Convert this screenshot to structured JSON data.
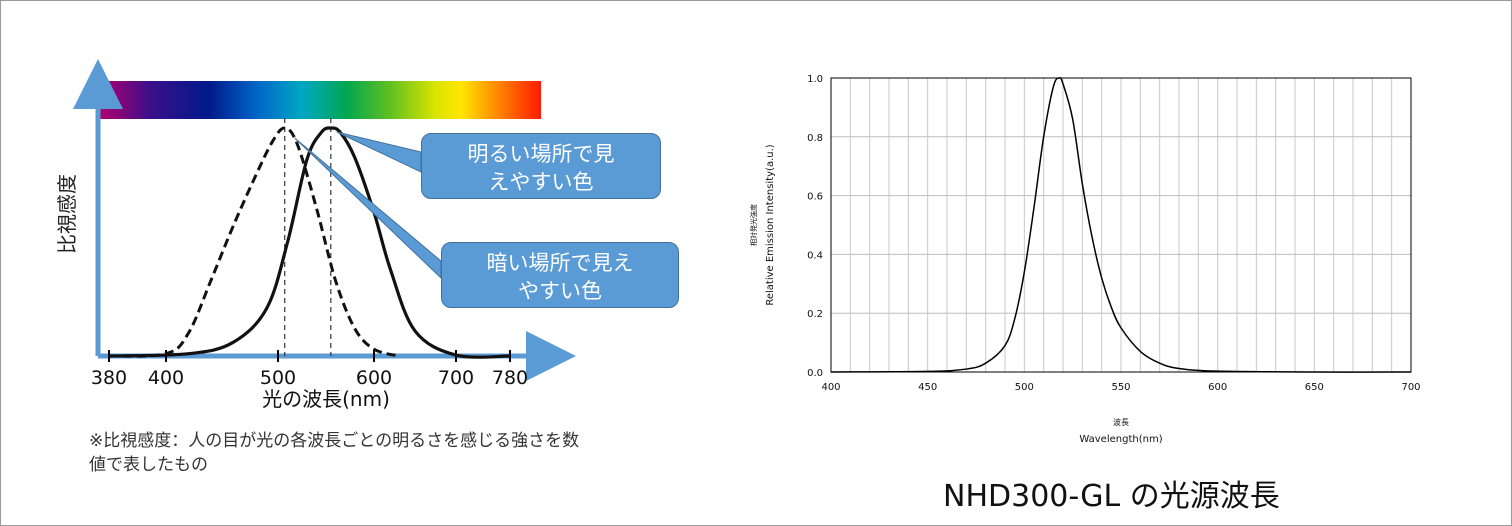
{
  "left_chart": {
    "ylabel": "比視感度",
    "xlabel": "光の波長(nm)",
    "tick_labels": [
      "380",
      "400",
      "500",
      "600",
      "700",
      "780"
    ],
    "callout_photopic": "明るい場所で見えやすい色",
    "callout_photopic_lines": [
      "明るい場所で見",
      "えやすい色"
    ],
    "callout_scotopic": "暗い場所で見えやすい色",
    "callout_scotopic_lines": [
      "暗い場所で見え",
      "やすい色"
    ],
    "note": "※比視感度：人の目が光の各波長ごとの明るさを感じる強さを数値で表したもの",
    "note_lines": [
      "※比視感度：人の目が光の各波長ごとの明るさを感じる強さを数",
      "値で表したもの"
    ],
    "axis_color": "#5b9bd5",
    "callout_color": "#5b9bd5"
  },
  "right_chart": {
    "ylabel_jp": "相対発光強度",
    "ylabel_en": "Relative Emission Intensity(a.u.)",
    "xlabel_jp": "波長",
    "xlabel_en": "Wavelength(nm)",
    "caption": "NHD300-GL の光源波長"
  },
  "chart_data": [
    {
      "type": "line",
      "xlabel": "光の波長(nm)",
      "ylabel": "比視感度",
      "xlim": [
        380,
        780
      ],
      "x_ticks": [
        380,
        400,
        500,
        600,
        700,
        780
      ],
      "series": [
        {
          "style": "solid",
          "peak_x": 555,
          "x": [
            380,
            420,
            460,
            490,
            510,
            530,
            545,
            555,
            565,
            580,
            600,
            620,
            650,
            700,
            780
          ],
          "y": [
            0.0,
            0.01,
            0.06,
            0.21,
            0.5,
            0.86,
            0.98,
            1.0,
            0.98,
            0.87,
            0.63,
            0.38,
            0.11,
            0.004,
            0.0
          ]
        },
        {
          "style": "dashed",
          "peak_x": 507,
          "x": [
            380,
            400,
            420,
            440,
            460,
            480,
            495,
            507,
            520,
            540,
            560,
            580,
            600,
            630
          ],
          "y": [
            0.0,
            0.01,
            0.1,
            0.33,
            0.57,
            0.79,
            0.94,
            1.0,
            0.93,
            0.65,
            0.33,
            0.12,
            0.03,
            0.0
          ]
        }
      ]
    },
    {
      "type": "line",
      "xlabel": "Wavelength(nm)",
      "ylabel": "Relative Emission Intensity(a.u.)",
      "xlim": [
        400,
        700
      ],
      "ylim": [
        0,
        1.0
      ],
      "x_ticks": [
        400,
        450,
        500,
        550,
        600,
        650,
        700
      ],
      "y_ticks": [
        0.0,
        0.2,
        0.4,
        0.6,
        0.8,
        1.0
      ],
      "grid": true,
      "series": [
        {
          "x": [
            400,
            450,
            470,
            480,
            490,
            495,
            500,
            505,
            510,
            515,
            518,
            520,
            525,
            530,
            535,
            540,
            545,
            550,
            560,
            570,
            580,
            600,
            650,
            700
          ],
          "y": [
            0.0,
            0.002,
            0.01,
            0.03,
            0.09,
            0.18,
            0.34,
            0.56,
            0.8,
            0.97,
            1.0,
            0.98,
            0.86,
            0.64,
            0.46,
            0.32,
            0.22,
            0.15,
            0.07,
            0.03,
            0.012,
            0.003,
            0.0,
            0.0
          ]
        }
      ]
    }
  ]
}
